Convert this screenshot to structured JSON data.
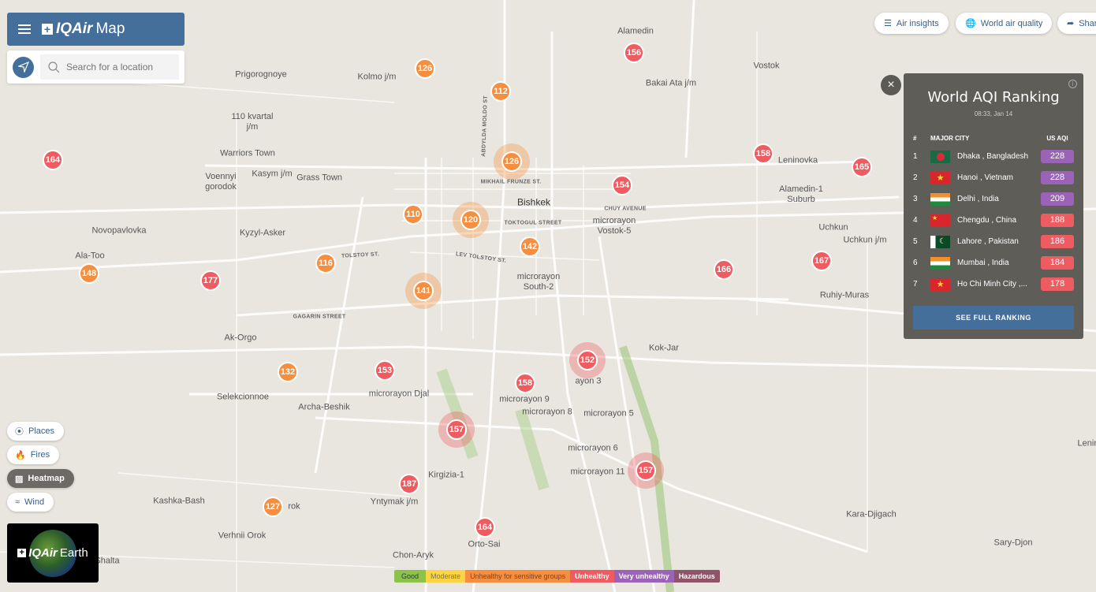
{
  "header": {
    "brand": "IQAir",
    "brand_suffix": "Map"
  },
  "search": {
    "placeholder": "Search for a location"
  },
  "top_buttons": [
    {
      "label": "Air insights",
      "icon": "list-icon"
    },
    {
      "label": "World air quality",
      "icon": "globe-icon"
    },
    {
      "label": "Share",
      "icon": "share-icon"
    }
  ],
  "layers": [
    {
      "label": "Places",
      "icon": "pin-icon"
    },
    {
      "label": "Fires",
      "icon": "fire-icon"
    },
    {
      "label": "Heatmap",
      "icon": "heatmap-icon",
      "active": true
    },
    {
      "label": "Wind",
      "icon": "wind-icon"
    }
  ],
  "earth": {
    "brand": "IQAir",
    "suffix": "Earth"
  },
  "legend": [
    {
      "label": "Good",
      "color": "#8bc34a"
    },
    {
      "label": "Moderate",
      "color": "#fdd443"
    },
    {
      "label": "Unhealthy for sensitive groups",
      "color": "#f58e3f"
    },
    {
      "label": "Unhealthy",
      "color": "#ee5b60"
    },
    {
      "label": "Very unhealthy",
      "color": "#9b63b5"
    },
    {
      "label": "Hazardous",
      "color": "#8e5468"
    }
  ],
  "ranking": {
    "title": "World AQI Ranking",
    "time": "08:33, Jan 14",
    "col_num": "#",
    "col_city": "MAJOR CITY",
    "col_aqi": "US AQI",
    "button": "SEE FULL RANKING",
    "rows": [
      {
        "rank": "1",
        "city": "Dhaka , Bangladesh",
        "aqi": "228",
        "flag": "bangladesh"
      },
      {
        "rank": "2",
        "city": "Hanoi , Vietnam",
        "aqi": "228",
        "flag": "vietnam"
      },
      {
        "rank": "3",
        "city": "Delhi , India",
        "aqi": "209",
        "flag": "india"
      },
      {
        "rank": "4",
        "city": "Chengdu , China",
        "aqi": "188",
        "flag": "china"
      },
      {
        "rank": "5",
        "city": "Lahore , Pakistan",
        "aqi": "186",
        "flag": "pakistan"
      },
      {
        "rank": "6",
        "city": "Mumbai , India",
        "aqi": "184",
        "flag": "india"
      },
      {
        "rank": "7",
        "city": "Ho Chi Minh City ,...",
        "aqi": "178",
        "flag": "vietnam"
      }
    ]
  },
  "markers": [
    "126",
    "112",
    "156",
    "126",
    "164",
    "158",
    "165",
    "154",
    "110",
    "120",
    "142",
    "116",
    "148",
    "177",
    "166",
    "167",
    "141",
    "152",
    "132",
    "153",
    "158",
    "157",
    "157",
    "187",
    "127",
    "164"
  ],
  "places": [
    "Bishkek",
    "Prigorognoye",
    "Kolmo j/m",
    "Alamedin",
    "Bakai Ata j/m",
    "Vostok",
    "110 kvartal j/m",
    "Warriors Town",
    "Kasym j/m",
    "Voennyi gorodok",
    "Grass Town",
    "Novopavlovka",
    "Kyzyl-Asker",
    "Ala-Too",
    "Leninovka",
    "Alamedin-1 Suburb",
    "Uchkun",
    "Uchkun j/m",
    "microrayon Vostok-5",
    "microrayon South-2",
    "Ruhiy-Muras",
    "Ak-Orgo",
    "Kok-Jar",
    "microrayon Djal",
    "Selekcionnoe",
    "Archa-Beshik",
    "microrayon 9",
    "microrayon 8",
    "microrayon 5",
    "microrayon 6",
    "microrayon 11",
    "Kirgizia-1",
    "Yntymak j/m",
    "Kashka-Bash",
    "Verhnii Orok",
    "Orto-Sai",
    "Chon-Aryk",
    "Kara-Djigach",
    "Sary-Djon",
    "Shalta",
    "Lenin",
    "ayon 3",
    "rok"
  ],
  "streets": [
    "ABDYLDA MOLDO ST",
    "MIKHAIL FRUNZE ST.",
    "TOKTOGUL STREET",
    "LEV TOLSTOY ST.",
    "TOLSTOY ST.",
    "CHUY AVENUE",
    "GAGARIN STREET"
  ]
}
